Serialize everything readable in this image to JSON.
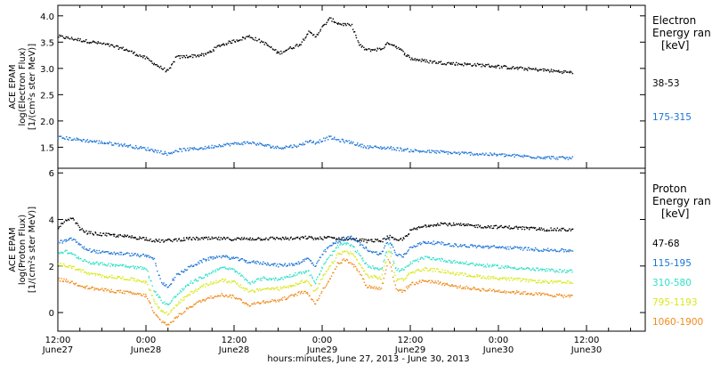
{
  "x_axis": {
    "title": "hours:minutes, June 27, 2013 - June 30, 2013",
    "range_hours": [
      0,
      80
    ],
    "ticks": [
      {
        "hours": 0,
        "time": "12:00",
        "date": "June27"
      },
      {
        "hours": 12,
        "time": "0:00",
        "date": "June28"
      },
      {
        "hours": 24,
        "time": "12:00",
        "date": "June28"
      },
      {
        "hours": 36,
        "time": "0:00",
        "date": "June29"
      },
      {
        "hours": 48,
        "time": "12:00",
        "date": "June29"
      },
      {
        "hours": 60,
        "time": "0:00",
        "date": "June30"
      },
      {
        "hours": 72,
        "time": "12:00",
        "date": "June30"
      }
    ]
  },
  "chart_data": [
    {
      "type": "scatter",
      "panel": "electron",
      "ylabel_lines": [
        "ACE EPAM",
        "log(Electron Flux)",
        "[1/(cm²s ster MeV)]"
      ],
      "ylim": [
        1.1,
        4.2
      ],
      "yticks": [
        1.5,
        2.0,
        2.5,
        3.0,
        3.5,
        4.0
      ],
      "ytick_labels": [
        "1.5",
        "2.0",
        "2.5",
        "3.0",
        "3.5",
        "4.0"
      ],
      "legend": {
        "title_lines": [
          "Electron",
          "Energy ran",
          "[keV]"
        ]
      },
      "x_hours": [
        0,
        3,
        6,
        9,
        12,
        14,
        15,
        16,
        20,
        22,
        26,
        28,
        30,
        33,
        34,
        35,
        36,
        37,
        38,
        40,
        41,
        42,
        44,
        45,
        46,
        48,
        50,
        52,
        54,
        58,
        62,
        66,
        70
      ],
      "series": [
        {
          "name": "38-53",
          "color": "#000000",
          "values": [
            3.62,
            3.55,
            3.48,
            3.38,
            3.2,
            3.02,
            2.95,
            3.22,
            3.27,
            3.45,
            3.62,
            3.5,
            3.3,
            3.48,
            3.7,
            3.62,
            3.8,
            3.96,
            3.87,
            3.82,
            3.45,
            3.36,
            3.38,
            3.5,
            3.43,
            3.2,
            3.15,
            3.12,
            3.1,
            3.07,
            3.02,
            2.98,
            2.93
          ]
        },
        {
          "name": "175-315",
          "color": "#1a73d8",
          "values": [
            1.7,
            1.65,
            1.6,
            1.55,
            1.48,
            1.42,
            1.38,
            1.45,
            1.5,
            1.55,
            1.6,
            1.55,
            1.5,
            1.55,
            1.63,
            1.6,
            1.65,
            1.7,
            1.65,
            1.6,
            1.55,
            1.52,
            1.5,
            1.5,
            1.48,
            1.45,
            1.43,
            1.42,
            1.4,
            1.38,
            1.35,
            1.32,
            1.3
          ]
        }
      ]
    },
    {
      "type": "scatter",
      "panel": "proton",
      "ylabel_lines": [
        "ACE EPAM",
        "log(Proton Flux)",
        "[1/(cm²s ster MeV)]"
      ],
      "ylim": [
        -0.8,
        6.2
      ],
      "yticks": [
        0,
        2,
        4,
        6
      ],
      "ytick_labels": [
        "0",
        "2",
        "4",
        "6"
      ],
      "legend": {
        "title_lines": [
          "Proton",
          "Energy ran",
          "[keV]"
        ]
      },
      "x_hours": [
        0,
        1,
        2,
        3,
        4,
        6,
        9,
        12,
        13,
        14,
        15,
        16,
        18,
        20,
        22,
        24,
        26,
        28,
        30,
        32,
        33,
        34,
        35,
        36,
        37,
        38,
        39,
        40,
        41,
        42,
        43,
        44,
        45,
        46,
        47,
        48,
        50,
        52,
        54,
        58,
        62,
        66,
        70
      ],
      "series": [
        {
          "name": "47-68",
          "color": "#000000",
          "values": [
            3.7,
            3.95,
            4.05,
            3.6,
            3.45,
            3.38,
            3.3,
            3.2,
            3.12,
            3.1,
            3.12,
            3.15,
            3.2,
            3.2,
            3.2,
            3.18,
            3.2,
            3.2,
            3.22,
            3.2,
            3.22,
            3.25,
            3.2,
            3.22,
            3.25,
            3.2,
            3.2,
            3.18,
            3.15,
            3.1,
            3.12,
            3.1,
            3.3,
            3.1,
            3.2,
            3.55,
            3.75,
            3.85,
            3.8,
            3.72,
            3.68,
            3.6,
            3.58
          ]
        },
        {
          "name": "115-195",
          "color": "#1a73d8",
          "values": [
            3.05,
            3.1,
            3.2,
            2.9,
            2.72,
            2.6,
            2.55,
            2.45,
            2.35,
            1.3,
            1.15,
            1.6,
            2.0,
            2.3,
            2.45,
            2.35,
            2.2,
            2.15,
            2.05,
            2.1,
            2.2,
            2.35,
            2.0,
            2.55,
            2.9,
            3.05,
            3.2,
            3.25,
            3.0,
            2.75,
            2.6,
            2.55,
            3.2,
            2.5,
            2.45,
            2.85,
            3.05,
            3.0,
            2.92,
            2.85,
            2.8,
            2.72,
            2.68
          ]
        },
        {
          "name": "310-580",
          "color": "#2fe0c8",
          "values": [
            2.6,
            2.65,
            2.5,
            2.35,
            2.2,
            2.1,
            2.05,
            1.9,
            1.0,
            0.55,
            0.35,
            0.75,
            1.3,
            1.6,
            1.95,
            1.85,
            1.3,
            1.5,
            1.45,
            1.65,
            1.75,
            1.8,
            1.3,
            2.0,
            2.45,
            2.85,
            3.0,
            2.9,
            2.5,
            2.05,
            1.95,
            1.9,
            3.0,
            1.85,
            1.85,
            2.15,
            2.4,
            2.3,
            2.2,
            2.05,
            1.95,
            1.85,
            1.8
          ]
        },
        {
          "name": "795-1193",
          "color": "#d8e81a",
          "values": [
            2.1,
            2.05,
            1.95,
            1.85,
            1.7,
            1.6,
            1.5,
            1.35,
            0.55,
            0.1,
            -0.05,
            0.35,
            0.85,
            1.2,
            1.4,
            1.35,
            0.9,
            1.05,
            1.05,
            1.2,
            1.35,
            1.35,
            0.9,
            1.55,
            2.0,
            2.5,
            2.65,
            2.55,
            2.15,
            1.6,
            1.55,
            1.5,
            2.75,
            1.45,
            1.45,
            1.75,
            1.9,
            1.82,
            1.7,
            1.55,
            1.45,
            1.35,
            1.3
          ]
        },
        {
          "name": "1060-1900",
          "color": "#f08a1a",
          "values": [
            1.45,
            1.4,
            1.3,
            1.2,
            1.1,
            1.0,
            0.9,
            0.75,
            0.0,
            -0.35,
            -0.5,
            -0.2,
            0.3,
            0.6,
            0.8,
            0.7,
            0.35,
            0.5,
            0.55,
            0.75,
            0.9,
            0.85,
            0.4,
            1.0,
            1.5,
            2.1,
            2.3,
            2.15,
            1.75,
            1.15,
            1.1,
            1.05,
            2.4,
            1.0,
            0.95,
            1.25,
            1.4,
            1.3,
            1.15,
            1.0,
            0.9,
            0.8,
            0.72
          ]
        }
      ]
    }
  ]
}
